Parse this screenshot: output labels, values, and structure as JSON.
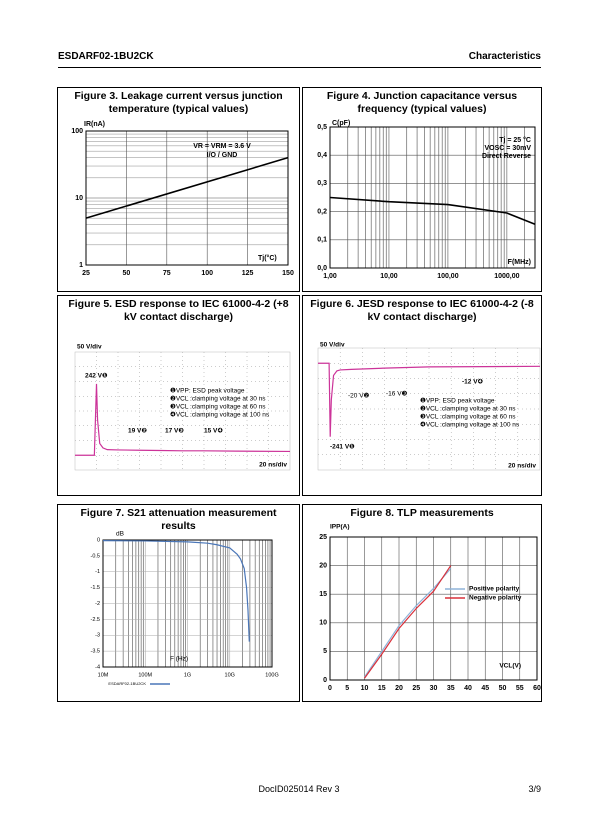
{
  "header": {
    "part": "ESDARF02-1BU2CK",
    "section": "Characteristics"
  },
  "footer": {
    "doc": "DocID025014 Rev 3",
    "page": "3/9"
  },
  "chart_data": [
    {
      "type": "line",
      "title": "Figure 3. Leakage current versus junction temperature (typical values)",
      "x": [
        25,
        150
      ],
      "series": [
        {
          "color": "#000000",
          "values": [
            5,
            40
          ]
        }
      ],
      "xlim": [
        25,
        150
      ],
      "xticks": [
        25,
        50,
        75,
        100,
        125,
        150
      ],
      "ylim": [
        1,
        100
      ],
      "yticks": [
        1,
        10,
        100
      ],
      "yscale": "log",
      "grid": true,
      "annotations": [
        "IR(nA)",
        "VR = VRM = 3.6 V",
        "I/O / GND",
        "Tj(°C)"
      ]
    },
    {
      "type": "line",
      "title": "Figure 4. Junction capacitance versus frequency (typical values)",
      "x": [
        1,
        10,
        100,
        1000,
        3000
      ],
      "series": [
        {
          "color": "#000000",
          "values": [
            0.25,
            0.235,
            0.225,
            0.195,
            0.155
          ]
        }
      ],
      "xlim": [
        1,
        3000
      ],
      "xscale": "log",
      "xticks": [
        {
          "value": 1,
          "label": "1,00"
        },
        {
          "value": 10,
          "label": "10,00"
        },
        {
          "value": 100,
          "label": "100,00"
        },
        {
          "value": 1000,
          "label": "1000,00"
        }
      ],
      "ylim": [
        0,
        0.5
      ],
      "yticks": [
        {
          "value": 0,
          "label": "0,0"
        },
        {
          "value": 0.1,
          "label": "0,1"
        },
        {
          "value": 0.2,
          "label": "0,2"
        },
        {
          "value": 0.3,
          "label": "0,3"
        },
        {
          "value": 0.4,
          "label": "0,4"
        },
        {
          "value": 0.5,
          "label": "0,5"
        }
      ],
      "grid": true,
      "annotations": [
        "C(pF)",
        "Tj = 25 °C",
        "VOSC = 30mV",
        "Direct Reverse",
        "F(MHz)"
      ]
    },
    {
      "type": "line",
      "title": "Figure 5. ESD response to IEC 61000-4-2 (+8 kV contact discharge)",
      "x": [
        0,
        18,
        20,
        21,
        23,
        26,
        30,
        40,
        60,
        80,
        100,
        120,
        150,
        200
      ],
      "series": [
        {
          "color": "#cc3399",
          "values": [
            0,
            0,
            242,
            120,
            40,
            25,
            19,
            18,
            17,
            16,
            15,
            15,
            14,
            13
          ]
        }
      ],
      "xlim": [
        0,
        200
      ],
      "ylim": [
        -50,
        350
      ],
      "annotations": [
        "50 V/div",
        "242 V❶",
        "❶VPP: ESD peak voltage",
        "❷VCL :clamping voltage at 30 ns",
        "❸VCL :clamping voltage at 60 ns",
        "❹VCL :clamping voltage at 100 ns",
        "19 V❷",
        "17 V❸",
        "15 V❹",
        "20 ns/div"
      ]
    },
    {
      "type": "line",
      "title": "Figure 6. JESD response to IEC 61000-4-2 (-8 kV contact discharge)",
      "x": [
        0,
        10,
        11,
        12,
        14,
        17,
        20,
        30,
        60,
        100,
        150,
        200
      ],
      "series": [
        {
          "color": "#cc3399",
          "values": [
            0,
            0,
            -241,
            -120,
            -40,
            -25,
            -22,
            -20,
            -16,
            -12,
            -11,
            -10
          ]
        }
      ],
      "xlim": [
        0,
        200
      ],
      "ylim": [
        -350,
        50
      ],
      "annotations": [
        "50 V/div",
        "-12 V❹",
        "-20 V❷",
        "-16 V❸",
        "❶VPP: ESD peak voltage",
        "❷VCL :clamping voltage at 30 ns",
        "❸VCL :clamping voltage at 60 ns",
        "❹VCL :clamping voltage at 100 ns",
        "-241 V❶",
        "20 ns/div"
      ]
    },
    {
      "type": "line",
      "title": "Figure 7. S21 attenuation measurement results",
      "x": [
        10000000,
        100000000,
        1000000000,
        3000000000,
        5000000000,
        10000000000,
        15000000000,
        18000000000,
        22000000000,
        25000000000,
        27000000000,
        29000000000
      ],
      "series": [
        {
          "name": "ESDARF02-1BU2CK",
          "color": "#4a76b8",
          "values": [
            -0.02,
            -0.03,
            -0.06,
            -0.1,
            -0.15,
            -0.25,
            -0.45,
            -0.6,
            -0.9,
            -1.5,
            -2.2,
            -3.2
          ]
        }
      ],
      "xlim": [
        10000000,
        100000000000
      ],
      "xscale": "log",
      "xticks": [
        {
          "value": 10000000,
          "label": "10M"
        },
        {
          "value": 100000000,
          "label": "100M"
        },
        {
          "value": 1000000000,
          "label": "1G"
        },
        {
          "value": 10000000000,
          "label": "10G"
        },
        {
          "value": 100000000000,
          "label": "100G"
        }
      ],
      "ylim": [
        -4,
        0
      ],
      "yticks": [
        0,
        -0.5,
        -1,
        -1.5,
        -2,
        -2.5,
        -3,
        -3.5,
        -4
      ],
      "grid": true,
      "annotations": [
        "dB",
        "F (Hz)"
      ]
    },
    {
      "type": "line",
      "title": "Figure 8. TLP measurements",
      "x": [
        10,
        15,
        20,
        25,
        30,
        35
      ],
      "series": [
        {
          "name": "Positive polarity",
          "color": "#8fb3d9",
          "values": [
            0.5,
            5,
            9.5,
            13,
            16,
            19.5
          ]
        },
        {
          "name": "Negative polarity",
          "color": "#d9303a",
          "values": [
            0.3,
            4.5,
            9,
            12.5,
            15.5,
            20
          ]
        }
      ],
      "xlim": [
        0,
        60
      ],
      "xticks": [
        0,
        5,
        10,
        15,
        20,
        25,
        30,
        35,
        40,
        45,
        50,
        55,
        60
      ],
      "ylim": [
        0,
        25
      ],
      "yticks": [
        0,
        5,
        10,
        15,
        20,
        25
      ],
      "grid": true,
      "annotations": [
        "IPP(A)",
        "VCL(V)"
      ]
    }
  ]
}
